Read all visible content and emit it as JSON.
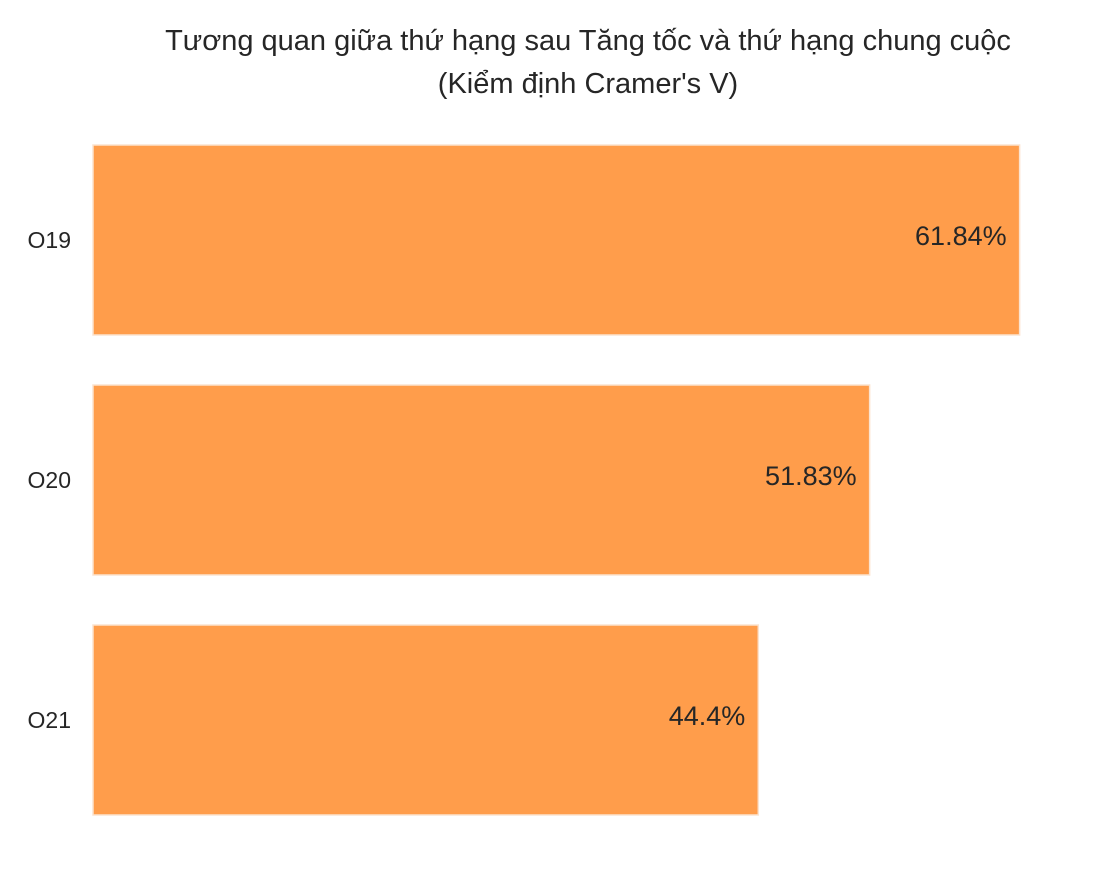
{
  "chart_data": {
    "type": "bar",
    "orientation": "horizontal",
    "title_line1": "Tương quan giữa thứ hạng sau Tăng tốc và thứ hạng chung cuộc",
    "title_line2": "(Kiểm định Cramer's V)",
    "categories": [
      "O19",
      "O20",
      "O21"
    ],
    "values": [
      61.84,
      51.83,
      44.4
    ],
    "value_labels": [
      "61.84%",
      "51.83%",
      "44.4%"
    ],
    "xlim": [
      0,
      63
    ],
    "bar_color": "#ff9d4b",
    "grid": false,
    "legend": "none",
    "xlabel": "",
    "ylabel": ""
  }
}
